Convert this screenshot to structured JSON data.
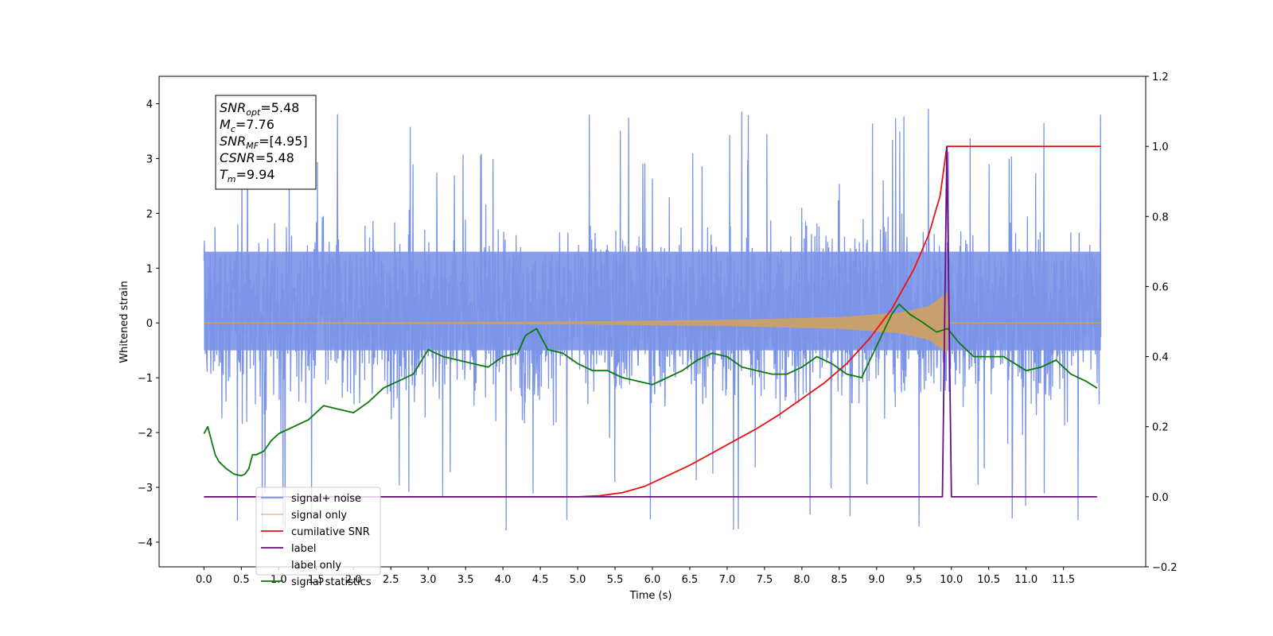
{
  "chart_data": {
    "type": "line",
    "title": "",
    "xlabel": "Time (s)",
    "ylabel": "Whitened strain",
    "xlim": [
      -0.6,
      12.6
    ],
    "ylim_left": [
      -4.45,
      4.5
    ],
    "ylim_right": [
      -0.2,
      1.2
    ],
    "x_ticks": [
      0.0,
      0.5,
      1.0,
      1.5,
      2.0,
      2.5,
      3.0,
      3.5,
      4.0,
      4.5,
      5.0,
      5.5,
      6.0,
      6.5,
      7.0,
      7.5,
      8.0,
      8.5,
      9.0,
      9.5,
      10.0,
      10.5,
      11.0,
      11.5
    ],
    "x_tick_labels": [
      "0.0",
      "0.5",
      "1.0",
      "1.5",
      "2.0",
      "2.5",
      "3.0",
      "3.5",
      "4.0",
      "4.5",
      "5.0",
      "5.5",
      "6.0",
      "6.5",
      "7.0",
      "7.5",
      "8.0",
      "8.5",
      "9.0",
      "9.5",
      "10.0",
      "10.5",
      "11.0",
      "11.5"
    ],
    "y_left_ticks": [
      -4,
      -3,
      -2,
      -1,
      0,
      1,
      2,
      3,
      4
    ],
    "y_left_tick_labels": [
      "−4",
      "−3",
      "−2",
      "−1",
      "0",
      "1",
      "2",
      "3",
      "4"
    ],
    "y_right_ticks": [
      -0.2,
      0.0,
      0.2,
      0.4,
      0.6,
      0.8,
      1.0,
      1.2
    ],
    "y_right_tick_labels": [
      "−0.2",
      "0.0",
      "0.2",
      "0.4",
      "0.6",
      "0.8",
      "1.0",
      "1.2"
    ],
    "series": [
      {
        "name": "signal+ noise",
        "axis": "left",
        "color": "#7b94e8",
        "x_range": [
          0.0,
          12.0
        ],
        "center": 0.0,
        "typical_band": [
          -1.6,
          2.0
        ],
        "min": -3.95,
        "max": 4.12
      },
      {
        "name": "signal only",
        "axis": "left",
        "color": "#c8a06e",
        "x_range": [
          0.0,
          12.0
        ],
        "envelope": [
          [
            0.0,
            0.0
          ],
          [
            5.0,
            0.02
          ],
          [
            7.0,
            0.05
          ],
          [
            8.5,
            0.1
          ],
          [
            9.3,
            0.18
          ],
          [
            9.7,
            0.3
          ],
          [
            9.85,
            0.45
          ],
          [
            9.94,
            0.55
          ],
          [
            9.95,
            0.0
          ],
          [
            12.0,
            0.0
          ]
        ]
      },
      {
        "name": "cumilative SNR",
        "axis": "right",
        "color": "#ee1111",
        "x": [
          0.0,
          5.0,
          5.3,
          5.6,
          5.9,
          6.2,
          6.5,
          6.8,
          7.1,
          7.4,
          7.7,
          8.0,
          8.3,
          8.6,
          8.9,
          9.2,
          9.5,
          9.7,
          9.85,
          9.94,
          12.0
        ],
        "y": [
          0.0,
          0.0,
          0.003,
          0.012,
          0.03,
          0.06,
          0.09,
          0.125,
          0.16,
          0.195,
          0.235,
          0.28,
          0.325,
          0.38,
          0.45,
          0.535,
          0.65,
          0.75,
          0.86,
          1.0,
          1.0
        ]
      },
      {
        "name": "label",
        "axis": "right",
        "color": "#6a0d83",
        "x": [
          0.0,
          9.88,
          9.94,
          10.0,
          11.95
        ],
        "y": [
          0.0,
          0.0,
          1.0,
          0.0,
          0.0
        ]
      },
      {
        "name": "label only",
        "axis": "right",
        "color": "#6a0d83",
        "x": [],
        "y": []
      },
      {
        "name": "signal statistics",
        "axis": "right",
        "color": "#0a7a0a",
        "x": [
          0.0,
          0.05,
          0.1,
          0.15,
          0.2,
          0.3,
          0.4,
          0.5,
          0.55,
          0.6,
          0.65,
          0.7,
          0.8,
          0.9,
          1.0,
          1.2,
          1.4,
          1.6,
          1.8,
          2.0,
          2.2,
          2.4,
          2.6,
          2.8,
          3.0,
          3.2,
          3.4,
          3.6,
          3.8,
          4.0,
          4.2,
          4.3,
          4.45,
          4.6,
          4.8,
          5.0,
          5.2,
          5.4,
          5.6,
          5.8,
          6.0,
          6.2,
          6.4,
          6.6,
          6.8,
          7.0,
          7.2,
          7.4,
          7.6,
          7.8,
          8.0,
          8.2,
          8.4,
          8.6,
          8.8,
          9.0,
          9.2,
          9.3,
          9.45,
          9.6,
          9.8,
          9.95,
          10.1,
          10.3,
          10.5,
          10.7,
          11.0,
          11.2,
          11.4,
          11.6,
          11.8,
          11.95
        ],
        "y": [
          0.18,
          0.2,
          0.16,
          0.12,
          0.1,
          0.08,
          0.065,
          0.06,
          0.065,
          0.08,
          0.12,
          0.12,
          0.13,
          0.16,
          0.18,
          0.2,
          0.22,
          0.26,
          0.25,
          0.24,
          0.27,
          0.31,
          0.33,
          0.35,
          0.42,
          0.4,
          0.39,
          0.38,
          0.37,
          0.4,
          0.41,
          0.46,
          0.48,
          0.42,
          0.41,
          0.38,
          0.36,
          0.36,
          0.34,
          0.33,
          0.32,
          0.34,
          0.36,
          0.39,
          0.41,
          0.4,
          0.37,
          0.36,
          0.35,
          0.35,
          0.37,
          0.4,
          0.38,
          0.35,
          0.34,
          0.43,
          0.52,
          0.55,
          0.52,
          0.5,
          0.47,
          0.48,
          0.44,
          0.4,
          0.4,
          0.4,
          0.36,
          0.37,
          0.39,
          0.35,
          0.33,
          0.31
        ]
      }
    ],
    "legend": {
      "placement": "lower-left",
      "entries": [
        "signal+ noise",
        "signal only",
        "cumilative SNR",
        "label",
        "label only",
        "signal statistics"
      ]
    },
    "annotation": {
      "lines": [
        {
          "base": "SNR",
          "sub": "opt",
          "rest": "=5.48"
        },
        {
          "base": "M",
          "sub": "c",
          "rest": "=7.76"
        },
        {
          "base": "SNR",
          "sub": "MF",
          "rest": "=[4.95]"
        },
        {
          "base": "CSNR",
          "sub": "",
          "rest": "=5.48"
        },
        {
          "base": "T",
          "sub": "m",
          "rest": "=9.94"
        }
      ]
    },
    "grid": false
  }
}
